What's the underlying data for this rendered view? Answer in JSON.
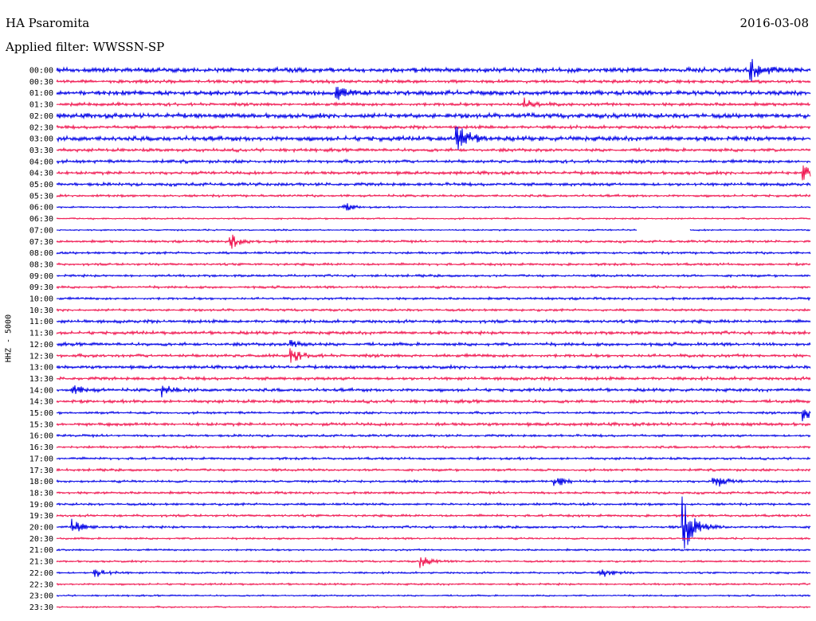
{
  "header": {
    "station": "HA Psaromita",
    "date": "2016-03-08",
    "filter": "Applied filter: WWSSN-SP"
  },
  "chart_data": {
    "type": "line",
    "title": "HA Psaromita",
    "ylabel": "HHZ - 5000",
    "colors": [
      "#0000e6",
      "#f0134e"
    ],
    "rows": [
      "00:00",
      "00:30",
      "01:00",
      "01:30",
      "02:00",
      "02:30",
      "03:00",
      "03:30",
      "04:00",
      "04:30",
      "05:00",
      "05:30",
      "06:00",
      "06:30",
      "07:00",
      "07:30",
      "08:00",
      "08:30",
      "09:00",
      "09:30",
      "10:00",
      "10:30",
      "11:00",
      "11:30",
      "12:00",
      "12:30",
      "13:00",
      "13:30",
      "14:00",
      "14:30",
      "15:00",
      "15:30",
      "16:00",
      "16:30",
      "17:00",
      "17:30",
      "18:00",
      "18:30",
      "19:00",
      "19:30",
      "20:00",
      "20:30",
      "21:00",
      "21:30",
      "22:00",
      "22:30",
      "23:00",
      "23:30"
    ],
    "noise": [
      3,
      2,
      3,
      2,
      3,
      2,
      3,
      2,
      2,
      2,
      2,
      1.5,
      1,
      1,
      1,
      1.5,
      1.5,
      1.5,
      1.5,
      1.5,
      1.5,
      1.5,
      2,
      2,
      2,
      2,
      2,
      2,
      2,
      2,
      1.5,
      2,
      1.5,
      1.5,
      1.5,
      1.5,
      1.5,
      1.5,
      1.5,
      1.5,
      1.5,
      1.2,
      1.2,
      1.2,
      1.2,
      1.2,
      1,
      1
    ],
    "events": [
      {
        "row": 0,
        "t": 0.92,
        "amp": 16
      },
      {
        "row": 2,
        "t": 0.37,
        "amp": 9
      },
      {
        "row": 3,
        "t": 0.62,
        "amp": 7
      },
      {
        "row": 6,
        "t": 0.53,
        "amp": 22
      },
      {
        "row": 9,
        "t": 0.99,
        "amp": 10
      },
      {
        "row": 12,
        "t": 0.38,
        "amp": 6
      },
      {
        "row": 15,
        "t": 0.23,
        "amp": 10
      },
      {
        "row": 24,
        "t": 0.31,
        "amp": 6
      },
      {
        "row": 25,
        "t": 0.31,
        "amp": 9
      },
      {
        "row": 28,
        "t": 0.02,
        "amp": 8
      },
      {
        "row": 28,
        "t": 0.14,
        "amp": 8
      },
      {
        "row": 30,
        "t": 0.99,
        "amp": 10
      },
      {
        "row": 36,
        "t": 0.66,
        "amp": 9
      },
      {
        "row": 36,
        "t": 0.87,
        "amp": 11
      },
      {
        "row": 40,
        "t": 0.02,
        "amp": 10
      },
      {
        "row": 40,
        "t": 0.83,
        "amp": 40
      },
      {
        "row": 43,
        "t": 0.48,
        "amp": 9
      },
      {
        "row": 44,
        "t": 0.05,
        "amp": 8
      },
      {
        "row": 44,
        "t": 0.72,
        "amp": 8
      }
    ],
    "gaps": [
      {
        "row": 14,
        "from": 0.77,
        "to": 0.84
      }
    ]
  }
}
